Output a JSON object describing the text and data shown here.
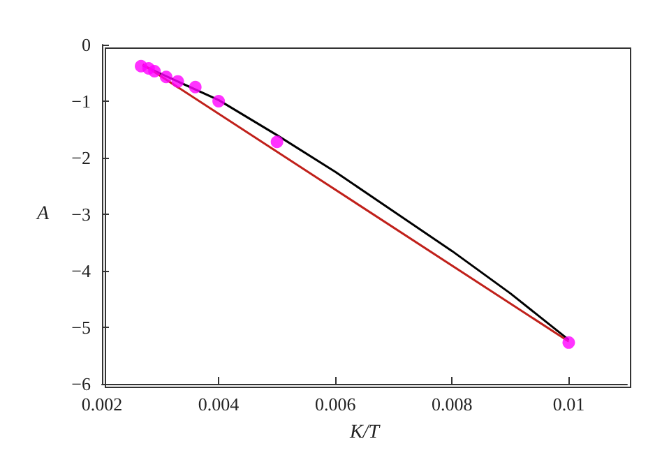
{
  "chart_data": {
    "type": "scatter",
    "xlabel": "K/T",
    "ylabel": "A",
    "xlim": [
      0.002,
      0.011
    ],
    "xticks": [
      0.002,
      0.004,
      0.006,
      0.008,
      0.01
    ],
    "ylim": [
      -6,
      0
    ],
    "yticks": [
      0,
      -1,
      -2,
      -3,
      -4,
      -5,
      -6
    ],
    "grid": false,
    "series": [
      {
        "type": "line",
        "color": "#000000",
        "marker": "none",
        "x": [
          0.0027,
          0.004,
          0.005,
          0.006,
          0.007,
          0.008,
          0.009,
          0.01
        ],
        "values": [
          -0.37,
          -0.98,
          -1.6,
          -2.25,
          -2.95,
          -3.65,
          -4.4,
          -5.22
        ]
      },
      {
        "type": "line",
        "color": "#c0201a",
        "marker": "none",
        "x": [
          0.0027,
          0.01
        ],
        "values": [
          -0.35,
          -5.25
        ]
      },
      {
        "color": "#ff00ff",
        "marker": "circle",
        "x": [
          0.00267,
          0.0028,
          0.0029,
          0.0031,
          0.0033,
          0.0036,
          0.004,
          0.005,
          0.01
        ],
        "values": [
          -0.38,
          -0.42,
          -0.47,
          -0.57,
          -0.65,
          -0.75,
          -1.0,
          -1.72,
          -5.27
        ]
      }
    ]
  }
}
